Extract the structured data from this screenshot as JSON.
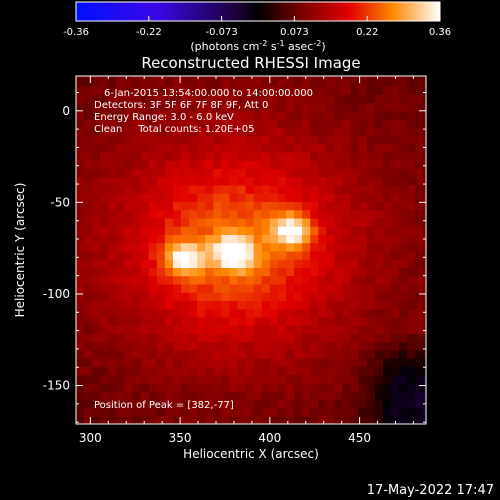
{
  "chart_data": {
    "type": "heatmap",
    "title": "Reconstructed RHESSI Image",
    "xlabel": "Heliocentric X (arcsec)",
    "ylabel": "Heliocentric Y (arcsec)",
    "xlim": [
      292,
      487
    ],
    "ylim": [
      -171,
      19
    ],
    "xticks": [
      300,
      350,
      400,
      450
    ],
    "yticks": [
      0,
      -50,
      -100,
      -150
    ],
    "colorbar": {
      "range": [
        -0.36,
        0.36
      ],
      "ticks": [
        "-0.36",
        "-0.22",
        "-0.073",
        "0.073",
        "0.22",
        "0.36"
      ],
      "unit_base": "(photons cm",
      "unit_exp1": "-2",
      "unit_mid": " s",
      "unit_exp2": "-1",
      "unit_mid2": " asec",
      "unit_exp3": "-2",
      "unit_end": ")"
    },
    "annotations": [
      "6-Jan-2015 13:54:00.000 to 14:00:00.000",
      "Detectors: 3F 5F 6F 7F 8F 9F, Att 0",
      "Energy Range: 3.0 - 6.0 keV",
      "Clean     Total counts: 1.20E+05"
    ],
    "peak_label": "Position of Peak = [382,-77]",
    "sources": [
      {
        "x": 352,
        "y": -80,
        "peak": 0.3
      },
      {
        "x": 380,
        "y": -77,
        "peak": 0.36
      },
      {
        "x": 412,
        "y": -65,
        "peak": 0.34
      }
    ]
  },
  "timestamp": "17-May-2022 17:47"
}
